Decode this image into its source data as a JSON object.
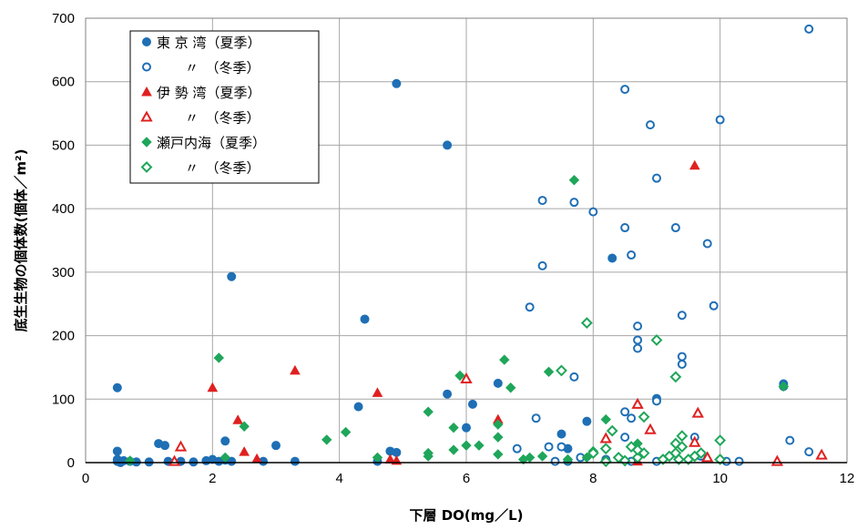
{
  "chart_data": {
    "type": "scatter",
    "xlabel": "下層 DO(mg／L)",
    "ylabel": "底生生物の個体数(個体／m²)",
    "xlim": [
      0,
      12
    ],
    "ylim": [
      0,
      700
    ],
    "x_ticks": [
      "0",
      "2",
      "4",
      "6",
      "8",
      "10",
      "12"
    ],
    "y_ticks": [
      "0",
      "100",
      "200",
      "300",
      "400",
      "500",
      "600",
      "700"
    ],
    "grid": true,
    "legend_position": "top-left",
    "series": [
      {
        "name": "東 京 湾（夏季）",
        "marker": "circle",
        "filled": true,
        "color": "#1f6fb5",
        "points": [
          [
            0.5,
            118
          ],
          [
            0.5,
            18
          ],
          [
            0.5,
            5
          ],
          [
            0.5,
            2
          ],
          [
            0.55,
            0
          ],
          [
            0.6,
            3
          ],
          [
            0.7,
            2
          ],
          [
            0.8,
            1
          ],
          [
            1.0,
            1
          ],
          [
            1.15,
            30
          ],
          [
            1.25,
            27
          ],
          [
            1.3,
            2
          ],
          [
            1.5,
            2
          ],
          [
            1.7,
            1
          ],
          [
            1.9,
            3
          ],
          [
            2.0,
            5
          ],
          [
            2.1,
            2
          ],
          [
            2.2,
            34
          ],
          [
            2.2,
            4
          ],
          [
            2.3,
            2
          ],
          [
            2.3,
            293
          ],
          [
            2.8,
            2
          ],
          [
            3.0,
            27
          ],
          [
            3.3,
            2
          ],
          [
            4.3,
            88
          ],
          [
            4.4,
            226
          ],
          [
            4.6,
            2
          ],
          [
            4.8,
            18
          ],
          [
            4.9,
            16
          ],
          [
            4.9,
            597
          ],
          [
            5.7,
            108
          ],
          [
            5.7,
            500
          ],
          [
            6.0,
            55
          ],
          [
            6.1,
            92
          ],
          [
            6.5,
            125
          ],
          [
            7.5,
            45
          ],
          [
            7.6,
            22
          ],
          [
            7.9,
            65
          ],
          [
            8.3,
            322
          ],
          [
            9.0,
            101
          ],
          [
            11.0,
            124
          ]
        ]
      },
      {
        "name": "〃　（冬季）",
        "marker": "circle",
        "filled": false,
        "color": "#1f6fb5",
        "points": [
          [
            6.8,
            22
          ],
          [
            7.0,
            245
          ],
          [
            7.1,
            70
          ],
          [
            7.2,
            413
          ],
          [
            7.2,
            310
          ],
          [
            7.3,
            25
          ],
          [
            7.4,
            2
          ],
          [
            7.5,
            25
          ],
          [
            7.6,
            2
          ],
          [
            7.7,
            410
          ],
          [
            7.7,
            135
          ],
          [
            7.8,
            8
          ],
          [
            8.0,
            395
          ],
          [
            8.2,
            5
          ],
          [
            8.5,
            588
          ],
          [
            8.5,
            370
          ],
          [
            8.5,
            80
          ],
          [
            8.5,
            40
          ],
          [
            8.6,
            327
          ],
          [
            8.6,
            70
          ],
          [
            8.6,
            2
          ],
          [
            8.7,
            215
          ],
          [
            8.7,
            193
          ],
          [
            8.7,
            180
          ],
          [
            8.9,
            532
          ],
          [
            9.0,
            448
          ],
          [
            9.0,
            97
          ],
          [
            9.0,
            2
          ],
          [
            9.3,
            370
          ],
          [
            9.4,
            232
          ],
          [
            9.4,
            167
          ],
          [
            9.4,
            155
          ],
          [
            9.6,
            40
          ],
          [
            9.7,
            10
          ],
          [
            9.8,
            345
          ],
          [
            9.9,
            247
          ],
          [
            10.0,
            540
          ],
          [
            10.1,
            2
          ],
          [
            10.3,
            2
          ],
          [
            11.0,
            120
          ],
          [
            11.1,
            35
          ],
          [
            11.4,
            17
          ],
          [
            11.4,
            683
          ]
        ]
      },
      {
        "name": "伊 勢 湾（夏季）",
        "marker": "triangle",
        "filled": true,
        "color": "#e02020",
        "points": [
          [
            2.0,
            118
          ],
          [
            2.4,
            67
          ],
          [
            2.5,
            17
          ],
          [
            2.7,
            6
          ],
          [
            3.3,
            145
          ],
          [
            4.6,
            110
          ],
          [
            4.8,
            5
          ],
          [
            4.9,
            3
          ],
          [
            6.5,
            68
          ],
          [
            8.7,
            2
          ],
          [
            9.6,
            468
          ]
        ]
      },
      {
        "name": "〃　（冬季）",
        "marker": "triangle",
        "filled": false,
        "color": "#e02020",
        "points": [
          [
            1.4,
            2
          ],
          [
            1.5,
            25
          ],
          [
            6.0,
            132
          ],
          [
            8.2,
            38
          ],
          [
            8.7,
            92
          ],
          [
            8.9,
            52
          ],
          [
            9.6,
            32
          ],
          [
            9.65,
            78
          ],
          [
            9.8,
            8
          ],
          [
            10.9,
            2
          ],
          [
            11.6,
            12
          ]
        ]
      },
      {
        "name": "瀬戸内海（夏季）",
        "marker": "diamond",
        "filled": true,
        "color": "#1fa65a",
        "points": [
          [
            0.7,
            3
          ],
          [
            2.1,
            165
          ],
          [
            2.2,
            8
          ],
          [
            2.5,
            57
          ],
          [
            3.8,
            36
          ],
          [
            4.1,
            48
          ],
          [
            4.6,
            8
          ],
          [
            5.4,
            80
          ],
          [
            5.4,
            15
          ],
          [
            5.4,
            10
          ],
          [
            5.8,
            55
          ],
          [
            5.8,
            20
          ],
          [
            5.9,
            137
          ],
          [
            6.0,
            27
          ],
          [
            6.2,
            27
          ],
          [
            6.5,
            40
          ],
          [
            6.5,
            13
          ],
          [
            6.5,
            60
          ],
          [
            6.6,
            162
          ],
          [
            6.7,
            118
          ],
          [
            6.9,
            5
          ],
          [
            7.0,
            8
          ],
          [
            7.2,
            10
          ],
          [
            7.3,
            143
          ],
          [
            7.6,
            5
          ],
          [
            7.7,
            445
          ],
          [
            7.9,
            8
          ],
          [
            8.0,
            18
          ],
          [
            8.2,
            68
          ],
          [
            8.7,
            30
          ],
          [
            11.0,
            120
          ]
        ]
      },
      {
        "name": "〃　（冬季）",
        "marker": "diamond",
        "filled": false,
        "color": "#1fa65a",
        "points": [
          [
            7.5,
            145
          ],
          [
            7.9,
            220
          ],
          [
            8.0,
            15
          ],
          [
            8.2,
            2
          ],
          [
            8.2,
            22
          ],
          [
            8.3,
            50
          ],
          [
            8.4,
            8
          ],
          [
            8.5,
            3
          ],
          [
            8.6,
            25
          ],
          [
            8.7,
            8
          ],
          [
            8.7,
            20
          ],
          [
            8.8,
            72
          ],
          [
            8.8,
            15
          ],
          [
            9.0,
            193
          ],
          [
            9.1,
            5
          ],
          [
            9.2,
            10
          ],
          [
            9.3,
            15
          ],
          [
            9.3,
            30
          ],
          [
            9.3,
            135
          ],
          [
            9.35,
            5
          ],
          [
            9.4,
            42
          ],
          [
            9.4,
            25
          ],
          [
            9.5,
            5
          ],
          [
            9.6,
            10
          ],
          [
            9.7,
            15
          ],
          [
            10.0,
            35
          ],
          [
            10.0,
            5
          ]
        ]
      }
    ]
  }
}
